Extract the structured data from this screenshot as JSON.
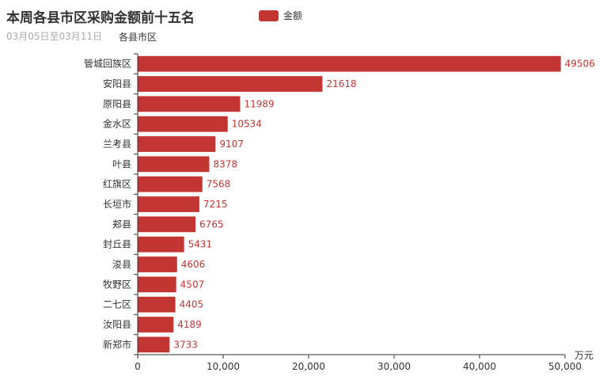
{
  "header": {
    "title": "本周各县市区采购金额前十五名",
    "subtitle": "03月05日至03月11日"
  },
  "legend": {
    "label": "金额",
    "color": "#c23531"
  },
  "chart_data": {
    "type": "bar",
    "orientation": "horizontal",
    "title": "本周各县市区采购金额前十五名",
    "subtitle": "03月05日至03月11日",
    "ylabel": "各县市区",
    "xlabel": "万元",
    "xlim": [
      0,
      50000
    ],
    "xticks": [
      0,
      10000,
      20000,
      30000,
      40000,
      50000
    ],
    "xtick_labels": [
      "0",
      "10,000",
      "20,000",
      "30,000",
      "40,000",
      "50,000"
    ],
    "categories": [
      "管城回族区",
      "安阳县",
      "原阳县",
      "金水区",
      "兰考县",
      "叶县",
      "红旗区",
      "长垣市",
      "郏县",
      "封丘县",
      "浚县",
      "牧野区",
      "二七区",
      "汝阳县",
      "新郑市"
    ],
    "series": [
      {
        "name": "金额",
        "values": [
          49506,
          21618,
          11989,
          10534,
          9107,
          8378,
          7568,
          7215,
          6765,
          5431,
          4606,
          4507,
          4405,
          4189,
          3733
        ]
      }
    ],
    "bar_color": "#c23531",
    "legend_position": "top",
    "grid": false
  }
}
